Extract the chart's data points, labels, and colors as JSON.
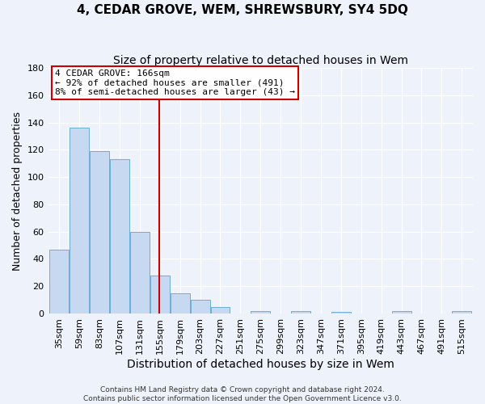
{
  "title": "4, CEDAR GROVE, WEM, SHREWSBURY, SY4 5DQ",
  "subtitle": "Size of property relative to detached houses in Wem",
  "xlabel": "Distribution of detached houses by size in Wem",
  "ylabel": "Number of detached properties",
  "bar_color": "#c6d9f0",
  "bar_edge_color": "#6aaed6",
  "bin_labels": [
    "35sqm",
    "59sqm",
    "83sqm",
    "107sqm",
    "131sqm",
    "155sqm",
    "179sqm",
    "203sqm",
    "227sqm",
    "251sqm",
    "275sqm",
    "299sqm",
    "323sqm",
    "347sqm",
    "371sqm",
    "395sqm",
    "419sqm",
    "443sqm",
    "467sqm",
    "491sqm",
    "515sqm"
  ],
  "bin_values": [
    47,
    136,
    119,
    113,
    60,
    28,
    15,
    10,
    5,
    0,
    2,
    0,
    2,
    0,
    1,
    0,
    0,
    2,
    0,
    0,
    2
  ],
  "bin_starts": [
    35,
    59,
    83,
    107,
    131,
    155,
    179,
    203,
    227,
    251,
    275,
    299,
    323,
    347,
    371,
    395,
    419,
    443,
    467,
    491,
    515
  ],
  "bin_width": 24,
  "property_size": 166,
  "vline_color": "#cc0000",
  "annotation_line1": "4 CEDAR GROVE: 166sqm",
  "annotation_line2": "← 92% of detached houses are smaller (491)",
  "annotation_line3": "8% of semi-detached houses are larger (43) →",
  "annotation_box_color": "#ffffff",
  "annotation_border_color": "#cc0000",
  "ylim": [
    0,
    180
  ],
  "yticks": [
    0,
    20,
    40,
    60,
    80,
    100,
    120,
    140,
    160,
    180
  ],
  "footer_line1": "Contains HM Land Registry data © Crown copyright and database right 2024.",
  "footer_line2": "Contains public sector information licensed under the Open Government Licence v3.0.",
  "background_color": "#eef2fa",
  "grid_color": "#ffffff",
  "title_fontsize": 11,
  "subtitle_fontsize": 10,
  "xlabel_fontsize": 10,
  "ylabel_fontsize": 9,
  "tick_fontsize": 8,
  "annotation_fontsize": 8,
  "footer_fontsize": 6.5
}
